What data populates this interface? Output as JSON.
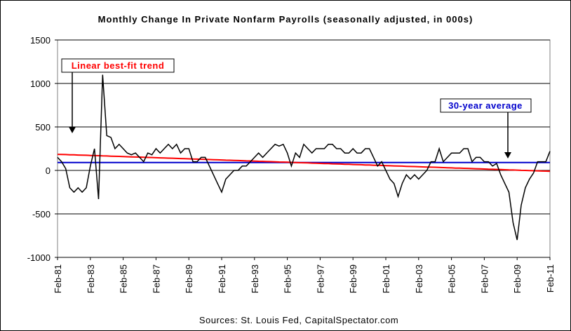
{
  "chart_data": {
    "type": "line",
    "title": "Monthly Change In Private Nonfarm Payrolls (seasonally adjusted, in 000s)",
    "source": "Sources: St. Louis Fed, CapitalSpectator.com",
    "categories": [
      "Feb-81",
      null,
      null,
      null,
      null,
      null,
      null,
      null,
      "Feb-83",
      null,
      null,
      null,
      null,
      null,
      null,
      null,
      "Feb-85",
      null,
      null,
      null,
      null,
      null,
      null,
      null,
      "Feb-87",
      null,
      null,
      null,
      null,
      null,
      null,
      null,
      "Feb-89",
      null,
      null,
      null,
      null,
      null,
      null,
      null,
      "Feb-91",
      null,
      null,
      null,
      null,
      null,
      null,
      null,
      "Feb-93",
      null,
      null,
      null,
      null,
      null,
      null,
      null,
      "Feb-95",
      null,
      null,
      null,
      null,
      null,
      null,
      null,
      "Feb-97",
      null,
      null,
      null,
      null,
      null,
      null,
      null,
      "Feb-99",
      null,
      null,
      null,
      null,
      null,
      null,
      null,
      "Feb-01",
      null,
      null,
      null,
      null,
      null,
      null,
      null,
      "Feb-03",
      null,
      null,
      null,
      null,
      null,
      null,
      null,
      "Feb-05",
      null,
      null,
      null,
      null,
      null,
      null,
      null,
      "Feb-07",
      null,
      null,
      null,
      null,
      null,
      null,
      null,
      "Feb-09",
      null,
      null,
      null,
      null,
      null,
      null,
      null,
      "Feb-11"
    ],
    "series": [
      {
        "color": "#000000",
        "values": [
          150,
          100,
          20,
          -200,
          -250,
          -200,
          -250,
          -200,
          50,
          250,
          -330,
          1100,
          400,
          380,
          250,
          300,
          250,
          200,
          180,
          200,
          150,
          100,
          200,
          180,
          250,
          200,
          250,
          300,
          250,
          300,
          200,
          250,
          250,
          100,
          100,
          150,
          150,
          50,
          -50,
          -150,
          -250,
          -100,
          -50,
          0,
          0,
          50,
          50,
          100,
          150,
          200,
          150,
          200,
          250,
          300,
          280,
          300,
          200,
          50,
          200,
          150,
          300,
          250,
          200,
          250,
          250,
          250,
          300,
          300,
          250,
          250,
          200,
          200,
          250,
          200,
          200,
          250,
          250,
          150,
          50,
          100,
          0,
          -100,
          -150,
          -300,
          -150,
          -50,
          -100,
          -50,
          -100,
          -50,
          0,
          100,
          100,
          250,
          100,
          150,
          200,
          200,
          200,
          250,
          250,
          100,
          150,
          150,
          100,
          100,
          50,
          80,
          -50,
          -150,
          -250,
          -600,
          -800,
          -400,
          -200,
          -100,
          -30,
          100,
          100,
          100,
          220
        ]
      },
      {
        "color": "#ff0000",
        "values": [
          185,
          183,
          182,
          180,
          179,
          177,
          175,
          174,
          172,
          170,
          169,
          167,
          166,
          164,
          162,
          161,
          159,
          157,
          156,
          154,
          153,
          151,
          149,
          148,
          146,
          144,
          143,
          141,
          140,
          138,
          136,
          135,
          133,
          131,
          130,
          128,
          127,
          125,
          123,
          122,
          120,
          118,
          117,
          115,
          114,
          112,
          110,
          109,
          107,
          105,
          104,
          102,
          101,
          99,
          97,
          96,
          94,
          92,
          91,
          89,
          88,
          86,
          84,
          83,
          81,
          79,
          78,
          76,
          75,
          73,
          71,
          70,
          68,
          66,
          65,
          63,
          62,
          60,
          58,
          57,
          55,
          53,
          52,
          50,
          49,
          47,
          45,
          44,
          42,
          40,
          39,
          37,
          36,
          34,
          32,
          31,
          29,
          27,
          26,
          24,
          23,
          21,
          19,
          18,
          16,
          14,
          13,
          11,
          10,
          8,
          6,
          5,
          3,
          1,
          0,
          -2,
          -3,
          -5,
          -7,
          -8,
          -10
        ]
      },
      {
        "color": "#0000cc",
        "values": [
          90,
          90,
          90,
          90,
          90,
          90,
          90,
          90,
          90,
          90,
          90,
          90,
          90,
          90,
          90,
          90,
          90,
          90,
          90,
          90,
          90,
          90,
          90,
          90,
          90,
          90,
          90,
          90,
          90,
          90,
          90,
          90,
          90,
          90,
          90,
          90,
          90,
          90,
          90,
          90,
          90,
          90,
          90,
          90,
          90,
          90,
          90,
          90,
          90,
          90,
          90,
          90,
          90,
          90,
          90,
          90,
          90,
          90,
          90,
          90,
          90,
          90,
          90,
          90,
          90,
          90,
          90,
          90,
          90,
          90,
          90,
          90,
          90,
          90,
          90,
          90,
          90,
          90,
          90,
          90,
          90,
          90,
          90,
          90,
          90,
          90,
          90,
          90,
          90,
          90,
          90,
          90,
          90,
          90,
          90,
          90,
          90,
          90,
          90,
          90,
          90,
          90,
          90,
          90,
          90,
          90,
          90,
          90,
          90,
          90,
          90,
          90,
          90,
          90,
          90,
          90,
          90,
          90,
          90,
          90,
          90
        ]
      }
    ],
    "annotations": [
      "Linear best-fit trend",
      "30-year average"
    ],
    "ylim": [
      -1000,
      1500
    ],
    "yticks": [
      -1000,
      -500,
      0,
      500,
      1000,
      1500
    ],
    "grid": true
  }
}
